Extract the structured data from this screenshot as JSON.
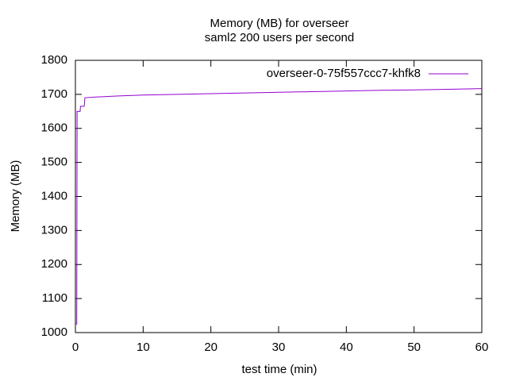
{
  "chart_data": {
    "type": "line",
    "title": "Memory (MB) for overseer",
    "subtitle": "saml2 200 users per second",
    "x_label": "test time (min)",
    "y_label": "Memory (MB)",
    "series": [
      {
        "name": "overseer-0-75f557ccc7-khfk8",
        "color": "#9400d3",
        "x": [
          0,
          0.1,
          0.2,
          0.25,
          0.7,
          0.75,
          1.3,
          1.4,
          3,
          6,
          10,
          15,
          20,
          25,
          30,
          35,
          40,
          45,
          50,
          55,
          60
        ],
        "values": [
          1025,
          1025,
          1025,
          1650,
          1650,
          1665,
          1665,
          1690,
          1692,
          1695,
          1698,
          1700,
          1702,
          1704,
          1706,
          1708,
          1710,
          1712,
          1713,
          1715,
          1717
        ]
      }
    ],
    "xlim": [
      0,
      60
    ],
    "xticks": [
      0,
      10,
      20,
      30,
      40,
      50,
      60
    ],
    "ylim": [
      1000,
      1800
    ],
    "yticks": [
      1000,
      1100,
      1200,
      1300,
      1400,
      1500,
      1600,
      1700,
      1800
    ],
    "grid": false,
    "legend": "top-right"
  }
}
